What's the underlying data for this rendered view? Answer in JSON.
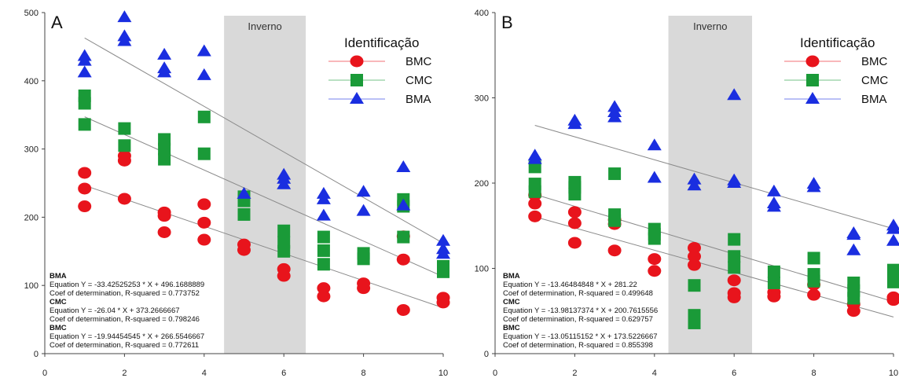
{
  "colors": {
    "BMC": "#e8141c",
    "CMC": "#1a9a38",
    "BMA": "#1a2ee0",
    "season_band": "#d9d9d9",
    "fit_line": "#8a8a8a"
  },
  "legend": {
    "title": "Identificação",
    "items": [
      "BMC",
      "CMC",
      "BMA"
    ]
  },
  "chart_data": [
    {
      "panel": "A",
      "type": "scatter",
      "xlim": [
        0,
        10
      ],
      "ylim": [
        0,
        500
      ],
      "xticks": [
        "0",
        "2",
        "4",
        "6",
        "8",
        "10"
      ],
      "yticks": [
        "0",
        "100",
        "200",
        "300",
        "400",
        "500"
      ],
      "shaded_region": {
        "x_from": 4.5,
        "x_to": 6.55,
        "label": "Inverno"
      },
      "series": [
        {
          "name": "BMC",
          "marker": "circle",
          "points": [
            [
              1,
              265
            ],
            [
              1,
              242
            ],
            [
              1,
              216
            ],
            [
              2,
              290
            ],
            [
              2,
              283
            ],
            [
              2,
              227
            ],
            [
              3,
              207
            ],
            [
              3,
              202
            ],
            [
              3,
              178
            ],
            [
              4,
              219
            ],
            [
              4,
              192
            ],
            [
              4,
              167
            ],
            [
              5,
              160
            ],
            [
              5,
              152
            ],
            [
              6,
              124
            ],
            [
              6,
              114
            ],
            [
              7,
              96
            ],
            [
              7,
              84
            ],
            [
              8,
              103
            ],
            [
              8,
              96
            ],
            [
              9,
              172
            ],
            [
              9,
              138
            ],
            [
              9,
              64
            ],
            [
              10,
              82
            ],
            [
              10,
              75
            ]
          ],
          "fit": {
            "slope": -19.94454545,
            "intercept": 266.5546667
          }
        },
        {
          "name": "CMC",
          "marker": "square",
          "points": [
            [
              1,
              378
            ],
            [
              1,
              367
            ],
            [
              1,
              336
            ],
            [
              2,
              330
            ],
            [
              2,
              305
            ],
            [
              3,
              314
            ],
            [
              3,
              300
            ],
            [
              3,
              285
            ],
            [
              4,
              347
            ],
            [
              4,
              293
            ],
            [
              5,
              230
            ],
            [
              5,
              224
            ],
            [
              5,
              204
            ],
            [
              6,
              180
            ],
            [
              6,
              163
            ],
            [
              6,
              150
            ],
            [
              7,
              171
            ],
            [
              7,
              151
            ],
            [
              7,
              131
            ],
            [
              8,
              147
            ],
            [
              8,
              139
            ],
            [
              9,
              226
            ],
            [
              9,
              216
            ],
            [
              9,
              171
            ],
            [
              10,
              128
            ],
            [
              10,
              120
            ]
          ],
          "fit": {
            "slope": -26.04,
            "intercept": 373.2666667
          }
        },
        {
          "name": "BMA",
          "marker": "triangle",
          "points": [
            [
              1,
              436
            ],
            [
              1,
              429
            ],
            [
              1,
              412
            ],
            [
              2,
              493
            ],
            [
              2,
              465
            ],
            [
              2,
              458
            ],
            [
              3,
              438
            ],
            [
              3,
              418
            ],
            [
              3,
              412
            ],
            [
              4,
              443
            ],
            [
              4,
              408
            ],
            [
              5,
              234
            ],
            [
              6,
              262
            ],
            [
              6,
              256
            ],
            [
              6,
              248
            ],
            [
              7,
              234
            ],
            [
              7,
              226
            ],
            [
              7,
              202
            ],
            [
              8,
              237
            ],
            [
              8,
              209
            ],
            [
              9,
              273
            ],
            [
              9,
              217
            ],
            [
              10,
              165
            ],
            [
              10,
              153
            ],
            [
              10,
              146
            ]
          ],
          "fit": {
            "slope": -33.42525253,
            "intercept": 496.1688889
          }
        }
      ],
      "regressions": [
        {
          "name": "BMA",
          "equation": "Equation Y = -33.42525253 * X + 496.1688889",
          "r2": "Coef of determination, R-squared = 0.773752"
        },
        {
          "name": "CMC",
          "equation": "Equation Y = -26.04 * X + 373.2666667",
          "r2": "Coef of determination, R-squared = 0.798246"
        },
        {
          "name": "BMC",
          "equation": "Equation Y = -19.94454545 * X + 266.5546667",
          "r2": "Coef of determination, R-squared = 0.772611"
        }
      ]
    },
    {
      "panel": "B",
      "type": "scatter",
      "xlim": [
        0,
        10
      ],
      "ylim": [
        0,
        400
      ],
      "xticks": [
        "0",
        "2",
        "4",
        "6",
        "8",
        "10"
      ],
      "yticks": [
        "0",
        "100",
        "200",
        "300",
        "400"
      ],
      "shaded_region": {
        "x_from": 4.35,
        "x_to": 6.45,
        "label": "Inverno"
      },
      "series": [
        {
          "name": "BMC",
          "marker": "circle",
          "points": [
            [
              1,
              186
            ],
            [
              1,
              176
            ],
            [
              1,
              161
            ],
            [
              2,
              166
            ],
            [
              2,
              153
            ],
            [
              2,
              130
            ],
            [
              3,
              157
            ],
            [
              3,
              152
            ],
            [
              3,
              121
            ],
            [
              4,
              111
            ],
            [
              4,
              97
            ],
            [
              5,
              124
            ],
            [
              5,
              114
            ],
            [
              5,
              104
            ],
            [
              6,
              86
            ],
            [
              6,
              71
            ],
            [
              6,
              66
            ],
            [
              7,
              72
            ],
            [
              7,
              67
            ],
            [
              8,
              81
            ],
            [
              8,
              69
            ],
            [
              9,
              58
            ],
            [
              9,
              50
            ],
            [
              10,
              66
            ],
            [
              10,
              63
            ]
          ],
          "fit": {
            "slope": -13.05115152,
            "intercept": 173.5226667
          }
        },
        {
          "name": "CMC",
          "marker": "square",
          "points": [
            [
              1,
              219
            ],
            [
              1,
              199
            ],
            [
              1,
              190
            ],
            [
              2,
              201
            ],
            [
              2,
              195
            ],
            [
              2,
              187
            ],
            [
              3,
              211
            ],
            [
              3,
              163
            ],
            [
              3,
              156
            ],
            [
              4,
              146
            ],
            [
              4,
              140
            ],
            [
              4,
              135
            ],
            [
              5,
              80
            ],
            [
              5,
              45
            ],
            [
              5,
              36
            ],
            [
              6,
              134
            ],
            [
              6,
              114
            ],
            [
              6,
              101
            ],
            [
              7,
              96
            ],
            [
              7,
              83
            ],
            [
              8,
              112
            ],
            [
              8,
              93
            ],
            [
              8,
              85
            ],
            [
              9,
              83
            ],
            [
              9,
              74
            ],
            [
              9,
              65
            ],
            [
              10,
              98
            ],
            [
              10,
              93
            ],
            [
              10,
              84
            ]
          ],
          "fit": {
            "slope": -13.98137374,
            "intercept": 200.7615556
          }
        },
        {
          "name": "BMA",
          "marker": "triangle",
          "points": [
            [
              1,
              232
            ],
            [
              1,
              228
            ],
            [
              2,
              273
            ],
            [
              2,
              269
            ],
            [
              3,
              289
            ],
            [
              3,
              283
            ],
            [
              3,
              277
            ],
            [
              4,
              244
            ],
            [
              4,
              206
            ],
            [
              5,
              204
            ],
            [
              5,
              197
            ],
            [
              6,
              303
            ],
            [
              6,
              203
            ],
            [
              6,
              200
            ],
            [
              7,
              190
            ],
            [
              7,
              176
            ],
            [
              7,
              172
            ],
            [
              8,
              199
            ],
            [
              8,
              195
            ],
            [
              9,
              141
            ],
            [
              9,
              139
            ],
            [
              9,
              121
            ],
            [
              10,
              150
            ],
            [
              10,
              146
            ],
            [
              10,
              132
            ]
          ],
          "fit": {
            "slope": -13.46484848,
            "intercept": 281.22
          }
        }
      ],
      "regressions": [
        {
          "name": "BMA",
          "equation": "Equation Y = -13.46484848 * X + 281.22",
          "r2": "Coef of determination, R-squared = 0.499648"
        },
        {
          "name": "CMC",
          "equation": "Equation Y = -13.98137374 * X + 200.7615556",
          "r2": "Coef of determination, R-squared = 0.629757"
        },
        {
          "name": "BMC",
          "equation": "Equation Y = -13.05115152 * X + 173.5226667",
          "r2": "Coef of determination, R-squared = 0.855398"
        }
      ]
    }
  ]
}
